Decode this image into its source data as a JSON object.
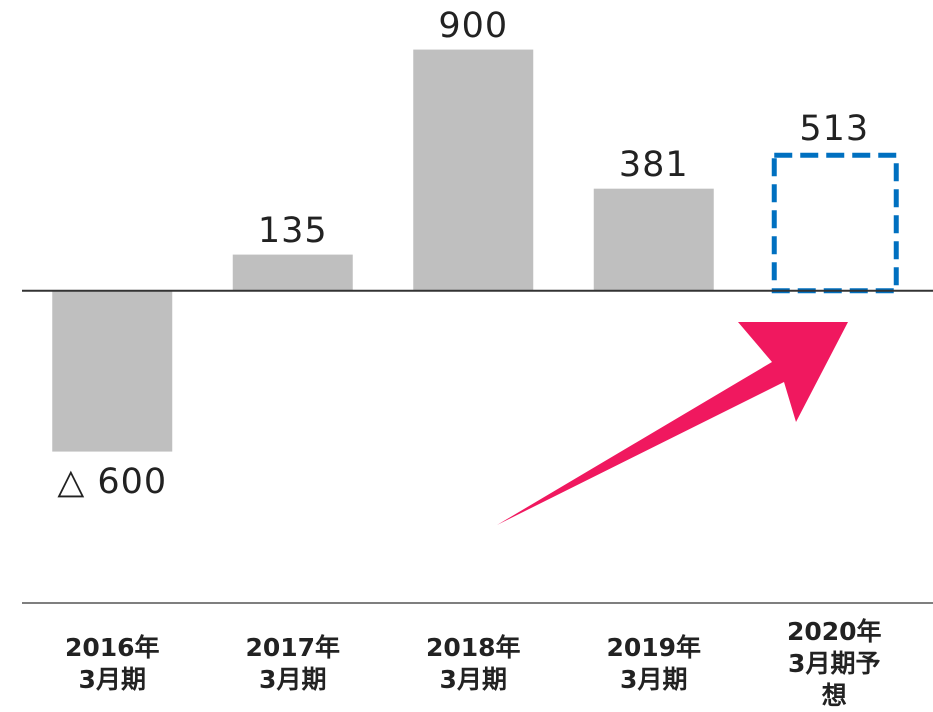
{
  "chart_data": {
    "type": "bar",
    "categories": [
      "2016年\n3月期",
      "2017年\n3月期",
      "2018年\n3月期",
      "2019年\n3月期",
      "2020年\n3月期予想"
    ],
    "values": [
      -600,
      135,
      900,
      381,
      513
    ],
    "value_labels": [
      "△ 600",
      "135",
      "900",
      "381",
      "513"
    ],
    "colors": [
      "#bfbfbf",
      "#bfbfbf",
      "#bfbfbf",
      "#bfbfbf",
      "#0070c0"
    ],
    "dashed": [
      false,
      false,
      false,
      false,
      true
    ],
    "ylim": [
      -1165,
      1085
    ]
  }
}
